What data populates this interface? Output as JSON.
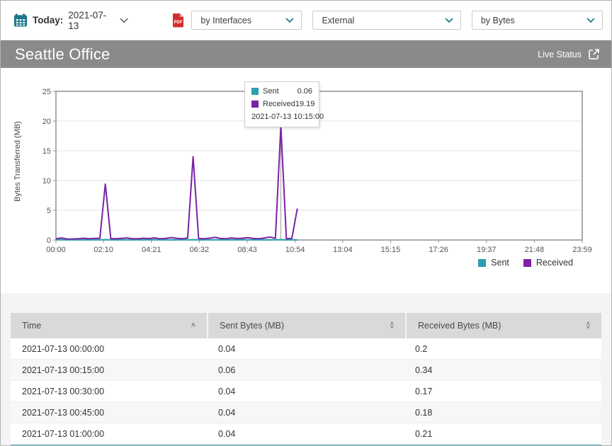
{
  "toolbar": {
    "date_label": "Today:",
    "date_value": "2021-07-13",
    "dropdowns": [
      {
        "value": "by Interfaces"
      },
      {
        "value": "External"
      },
      {
        "value": "by Bytes"
      }
    ]
  },
  "banner": {
    "title": "Seattle Office",
    "live_status_label": "Live Status"
  },
  "chart_data": {
    "type": "line",
    "ylabel": "Bytes Transferred (MB)",
    "ylim": [
      0,
      25
    ],
    "yticks": [
      0,
      5,
      10,
      15,
      20,
      25
    ],
    "x_domain_minutes": [
      0,
      1439
    ],
    "xticks": [
      {
        "t": 0,
        "label": "00:00"
      },
      {
        "t": 130,
        "label": "02:10"
      },
      {
        "t": 261,
        "label": "04:21"
      },
      {
        "t": 392,
        "label": "06:32"
      },
      {
        "t": 523,
        "label": "08:43"
      },
      {
        "t": 654,
        "label": "10:54"
      },
      {
        "t": 784,
        "label": "13:04"
      },
      {
        "t": 915,
        "label": "15:15"
      },
      {
        "t": 1046,
        "label": "17:26"
      },
      {
        "t": 1177,
        "label": "19:37"
      },
      {
        "t": 1308,
        "label": "21:48"
      },
      {
        "t": 1439,
        "label": "23:59"
      }
    ],
    "x_minutes": [
      0,
      15,
      30,
      45,
      60,
      75,
      90,
      105,
      120,
      135,
      150,
      165,
      180,
      195,
      210,
      225,
      240,
      255,
      270,
      285,
      300,
      315,
      330,
      345,
      360,
      375,
      390,
      405,
      420,
      435,
      450,
      465,
      480,
      495,
      510,
      525,
      540,
      555,
      570,
      585,
      600,
      615,
      630,
      645,
      660
    ],
    "series": [
      {
        "name": "Sent",
        "color": "#2aa0ad",
        "values": [
          0.04,
          0.06,
          0.04,
          0.04,
          0.04,
          0.05,
          0.04,
          0.05,
          0.04,
          0.06,
          0.04,
          0.05,
          0.04,
          0.04,
          0.05,
          0.04,
          0.05,
          0.04,
          0.06,
          0.04,
          0.05,
          0.04,
          0.04,
          0.05,
          0.04,
          0.06,
          0.04,
          0.05,
          0.04,
          0.05,
          0.04,
          0.04,
          0.05,
          0.04,
          0.06,
          0.05,
          0.04,
          0.04,
          0.05,
          0.04,
          0.05,
          0.06,
          0.04,
          0.05,
          0.04
        ]
      },
      {
        "name": "Received",
        "color": "#7b22a5",
        "values": [
          0.2,
          0.34,
          0.17,
          0.18,
          0.21,
          0.3,
          0.22,
          0.26,
          0.3,
          9.4,
          0.24,
          0.2,
          0.28,
          0.35,
          0.22,
          0.2,
          0.3,
          0.24,
          0.36,
          0.2,
          0.26,
          0.4,
          0.28,
          0.2,
          0.32,
          14,
          0.25,
          0.2,
          0.3,
          0.45,
          0.25,
          0.2,
          0.35,
          0.25,
          0.3,
          0.4,
          0.25,
          0.2,
          0.35,
          0.5,
          0.3,
          19.19,
          0.2,
          0.26,
          5.3
        ]
      }
    ],
    "hover": {
      "t": 615,
      "crosshair_color": "#9e9e9e"
    },
    "grid": true,
    "legend_position": "bottom-right"
  },
  "tooltip": {
    "rows": [
      {
        "name": "Sent",
        "value": "0.06",
        "color": "#2aa0ad"
      },
      {
        "name": "Received",
        "value": "19.19",
        "color": "#7b22a5"
      }
    ],
    "timestamp": "2021-07-13 10:15:00"
  },
  "legend": [
    {
      "label": "Sent",
      "color": "#2aa0ad"
    },
    {
      "label": "Received",
      "color": "#7b22a5"
    }
  ],
  "table": {
    "columns": [
      {
        "label": "Time",
        "sort": "asc"
      },
      {
        "label": "Sent Bytes (MB)",
        "sort": "both"
      },
      {
        "label": "Received Bytes (MB)",
        "sort": "both"
      }
    ],
    "rows": [
      [
        "2021-07-13 00:00:00",
        "0.04",
        "0.2"
      ],
      [
        "2021-07-13 00:15:00",
        "0.06",
        "0.34"
      ],
      [
        "2021-07-13 00:30:00",
        "0.04",
        "0.17"
      ],
      [
        "2021-07-13 00:45:00",
        "0.04",
        "0.18"
      ],
      [
        "2021-07-13 01:00:00",
        "0.04",
        "0.21"
      ]
    ]
  },
  "colors": {
    "accent_teal": "#2aa0ad",
    "accent_purple": "#7b22a5",
    "banner_gray": "#8a8a8a",
    "icon_teal": "#1d7789",
    "pdf_red": "#d32f2f",
    "table_bottom_border": "#5db6c7"
  }
}
